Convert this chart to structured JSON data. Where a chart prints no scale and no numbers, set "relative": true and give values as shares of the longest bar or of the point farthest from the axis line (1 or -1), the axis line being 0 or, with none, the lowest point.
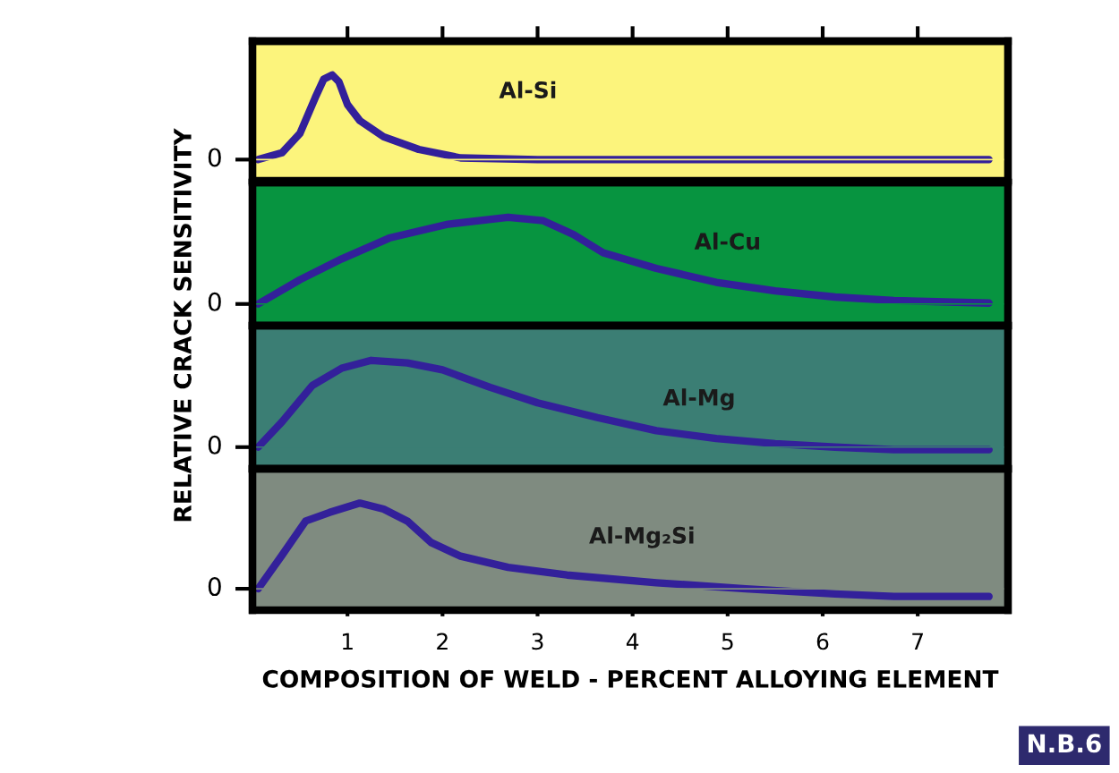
{
  "chart_data": [
    {
      "type": "line",
      "relative": true,
      "ylabel": "RELATIVE CRACK SENSITIVITY",
      "xlim": [
        0,
        7.95
      ],
      "xticks": [
        {
          "value": 1,
          "label": null
        },
        {
          "value": 2,
          "label": null
        },
        {
          "value": 3,
          "label": null
        },
        {
          "value": 4,
          "label": null
        },
        {
          "value": 5,
          "label": null
        },
        {
          "value": 6,
          "label": null
        },
        {
          "value": 7,
          "label": null
        }
      ],
      "tick_labels": false,
      "annotations": [
        "0"
      ],
      "series": [
        {
          "name": "Al-Si",
          "color": "#33209a",
          "x": [
            0.06,
            0.31,
            0.5,
            0.66,
            0.75,
            0.84,
            0.91,
            1.0,
            1.13,
            1.38,
            1.75,
            2.19,
            3.0,
            7.75
          ],
          "values": [
            0,
            0.08,
            0.31,
            0.73,
            0.95,
            1,
            0.92,
            0.65,
            0.46,
            0.27,
            0.12,
            0.02,
            0,
            0
          ]
        }
      ]
    },
    {
      "type": "line",
      "relative": true,
      "xlim": [
        0,
        7.95
      ],
      "tick_labels": false,
      "annotations": [
        "0"
      ],
      "series": [
        {
          "name": "Al-Cu",
          "color": "#33209a",
          "x": [
            0.06,
            0.5,
            0.94,
            1.44,
            2.06,
            2.69,
            3.06,
            3.38,
            3.69,
            4.25,
            4.88,
            5.5,
            6.13,
            6.75,
            7.75
          ],
          "values": [
            0,
            0.28,
            0.52,
            0.76,
            0.92,
            1,
            0.96,
            0.8,
            0.59,
            0.41,
            0.25,
            0.15,
            0.08,
            0.04,
            0.01
          ]
        }
      ]
    },
    {
      "type": "line",
      "relative": true,
      "xlim": [
        0,
        7.95
      ],
      "tick_labels": false,
      "annotations": [
        "0"
      ],
      "series": [
        {
          "name": "Al-Mg",
          "color": "#33209a",
          "x": [
            0.06,
            0.31,
            0.63,
            0.94,
            1.25,
            1.63,
            2.0,
            2.5,
            3.0,
            3.63,
            4.25,
            4.88,
            5.5,
            6.13,
            6.75,
            7.75
          ],
          "values": [
            0,
            0.29,
            0.71,
            0.91,
            1,
            0.97,
            0.89,
            0.69,
            0.51,
            0.34,
            0.19,
            0.1,
            0.04,
            0,
            -0.03,
            -0.03
          ]
        }
      ]
    },
    {
      "type": "line",
      "relative": true,
      "xlabel": "COMPOSITION OF WELD - PERCENT ALLOYING ELEMENT",
      "xlim": [
        0,
        7.95
      ],
      "xticks": [
        1,
        2,
        3,
        4,
        5,
        6,
        7
      ],
      "tick_labels": "x",
      "annotations": [
        "0",
        "N.B.6"
      ],
      "series": [
        {
          "name": "Al-Mg₂Si",
          "color": "#33209a",
          "x": [
            0.06,
            0.31,
            0.56,
            0.81,
            1.13,
            1.38,
            1.63,
            1.88,
            2.19,
            2.69,
            3.31,
            4.25,
            5.19,
            6.13,
            6.75,
            7.75
          ],
          "values": [
            0,
            0.39,
            0.79,
            0.89,
            1,
            0.93,
            0.79,
            0.54,
            0.38,
            0.25,
            0.16,
            0.07,
            0,
            -0.06,
            -0.09,
            -0.09
          ]
        }
      ]
    }
  ]
}
